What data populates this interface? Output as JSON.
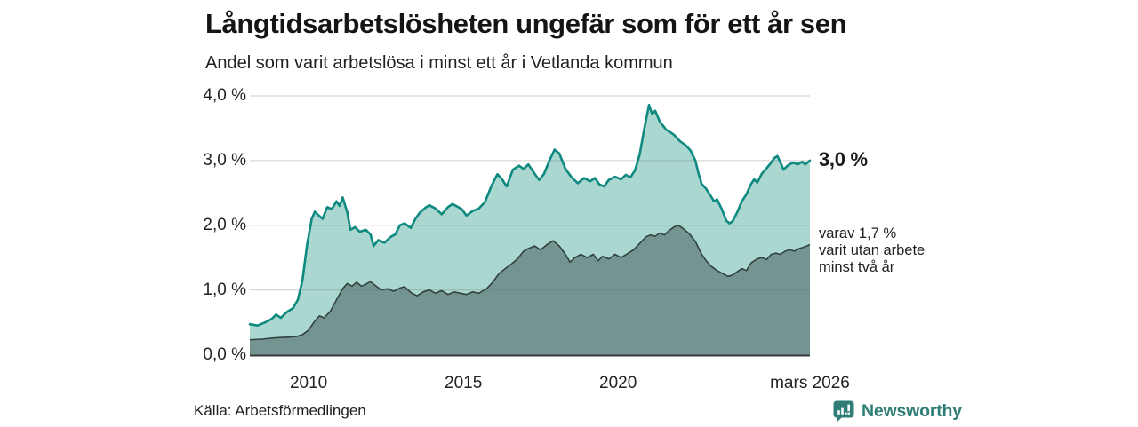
{
  "header": {
    "title": "Långtidsarbetslösheten ungefär som för ett år sen",
    "subtitle": "Andel som varit arbetslösa i minst ett år i Vetlanda kommun"
  },
  "chart_data": {
    "type": "area",
    "title": "Långtidsarbetslösheten ungefär som för ett år sen",
    "subtitle": "Andel som varit arbetslösa i minst ett år i Vetlanda kommun",
    "unit": "%",
    "x_domain": [
      2008.1,
      2026.2
    ],
    "ylim": [
      0,
      4
    ],
    "grid": true,
    "y_ticks": [
      {
        "value": 0,
        "label": "0,0 %"
      },
      {
        "value": 1,
        "label": "1,0 %"
      },
      {
        "value": 2,
        "label": "2,0 %"
      },
      {
        "value": 3,
        "label": "3,0 %"
      },
      {
        "value": 4,
        "label": "4,0 %"
      }
    ],
    "x_ticks": [
      {
        "value": 2010,
        "label": "2010"
      },
      {
        "value": 2015,
        "label": "2015"
      },
      {
        "value": 2020,
        "label": "2020"
      },
      {
        "value": 2026.2,
        "label": "mars 2026"
      }
    ],
    "colors": {
      "series1_line": "#0f8a80",
      "series1_fill": "#aad7d0",
      "series2_line": "#32423f",
      "series2_fill": "#739490",
      "gridline": "#d7d7d7",
      "axis_line": "#3a3a3a"
    },
    "series": [
      {
        "name": "Andel arbetslösa minst ett år",
        "end_value_label": "3,0 %",
        "points": [
          [
            2008.1,
            0.47
          ],
          [
            2008.35,
            0.45
          ],
          [
            2008.6,
            0.5
          ],
          [
            2008.8,
            0.55
          ],
          [
            2008.95,
            0.62
          ],
          [
            2009.1,
            0.57
          ],
          [
            2009.3,
            0.66
          ],
          [
            2009.5,
            0.72
          ],
          [
            2009.65,
            0.85
          ],
          [
            2009.8,
            1.15
          ],
          [
            2009.95,
            1.7
          ],
          [
            2010.1,
            2.1
          ],
          [
            2010.2,
            2.21
          ],
          [
            2010.35,
            2.14
          ],
          [
            2010.45,
            2.1
          ],
          [
            2010.6,
            2.28
          ],
          [
            2010.75,
            2.25
          ],
          [
            2010.9,
            2.37
          ],
          [
            2011.0,
            2.3
          ],
          [
            2011.1,
            2.43
          ],
          [
            2011.25,
            2.2
          ],
          [
            2011.35,
            1.93
          ],
          [
            2011.5,
            1.97
          ],
          [
            2011.65,
            1.9
          ],
          [
            2011.85,
            1.93
          ],
          [
            2012.0,
            1.86
          ],
          [
            2012.1,
            1.68
          ],
          [
            2012.25,
            1.77
          ],
          [
            2012.45,
            1.73
          ],
          [
            2012.65,
            1.82
          ],
          [
            2012.8,
            1.86
          ],
          [
            2012.95,
            2.0
          ],
          [
            2013.1,
            2.03
          ],
          [
            2013.3,
            1.96
          ],
          [
            2013.45,
            2.1
          ],
          [
            2013.6,
            2.2
          ],
          [
            2013.8,
            2.28
          ],
          [
            2013.9,
            2.31
          ],
          [
            2014.1,
            2.26
          ],
          [
            2014.3,
            2.17
          ],
          [
            2014.5,
            2.28
          ],
          [
            2014.65,
            2.33
          ],
          [
            2014.8,
            2.29
          ],
          [
            2014.95,
            2.25
          ],
          [
            2015.1,
            2.15
          ],
          [
            2015.3,
            2.22
          ],
          [
            2015.5,
            2.26
          ],
          [
            2015.7,
            2.36
          ],
          [
            2015.9,
            2.6
          ],
          [
            2016.1,
            2.79
          ],
          [
            2016.25,
            2.71
          ],
          [
            2016.4,
            2.6
          ],
          [
            2016.6,
            2.86
          ],
          [
            2016.8,
            2.92
          ],
          [
            2016.95,
            2.87
          ],
          [
            2017.1,
            2.94
          ],
          [
            2017.3,
            2.8
          ],
          [
            2017.45,
            2.7
          ],
          [
            2017.6,
            2.79
          ],
          [
            2017.8,
            3.02
          ],
          [
            2017.95,
            3.17
          ],
          [
            2018.1,
            3.11
          ],
          [
            2018.3,
            2.87
          ],
          [
            2018.5,
            2.74
          ],
          [
            2018.7,
            2.65
          ],
          [
            2018.9,
            2.73
          ],
          [
            2019.1,
            2.68
          ],
          [
            2019.25,
            2.73
          ],
          [
            2019.4,
            2.63
          ],
          [
            2019.55,
            2.6
          ],
          [
            2019.7,
            2.7
          ],
          [
            2019.9,
            2.75
          ],
          [
            2020.1,
            2.71
          ],
          [
            2020.25,
            2.78
          ],
          [
            2020.4,
            2.74
          ],
          [
            2020.55,
            2.85
          ],
          [
            2020.7,
            3.1
          ],
          [
            2020.85,
            3.5
          ],
          [
            2021.0,
            3.86
          ],
          [
            2021.1,
            3.72
          ],
          [
            2021.2,
            3.77
          ],
          [
            2021.35,
            3.6
          ],
          [
            2021.55,
            3.48
          ],
          [
            2021.8,
            3.4
          ],
          [
            2022.0,
            3.3
          ],
          [
            2022.2,
            3.23
          ],
          [
            2022.35,
            3.15
          ],
          [
            2022.5,
            3.0
          ],
          [
            2022.6,
            2.8
          ],
          [
            2022.7,
            2.64
          ],
          [
            2022.85,
            2.56
          ],
          [
            2023.0,
            2.45
          ],
          [
            2023.1,
            2.37
          ],
          [
            2023.2,
            2.4
          ],
          [
            2023.35,
            2.25
          ],
          [
            2023.5,
            2.07
          ],
          [
            2023.6,
            2.03
          ],
          [
            2023.7,
            2.06
          ],
          [
            2023.85,
            2.2
          ],
          [
            2024.0,
            2.37
          ],
          [
            2024.15,
            2.48
          ],
          [
            2024.3,
            2.64
          ],
          [
            2024.4,
            2.71
          ],
          [
            2024.5,
            2.66
          ],
          [
            2024.65,
            2.8
          ],
          [
            2024.8,
            2.88
          ],
          [
            2024.95,
            2.97
          ],
          [
            2025.05,
            3.04
          ],
          [
            2025.15,
            3.07
          ],
          [
            2025.25,
            2.97
          ],
          [
            2025.35,
            2.86
          ],
          [
            2025.5,
            2.93
          ],
          [
            2025.65,
            2.97
          ],
          [
            2025.8,
            2.94
          ],
          [
            2025.95,
            2.98
          ],
          [
            2026.05,
            2.94
          ],
          [
            2026.2,
            3.0
          ]
        ]
      },
      {
        "name": "varav utan arbete minst två år",
        "end_value_label": "1,7 %",
        "points": [
          [
            2008.1,
            0.23
          ],
          [
            2008.5,
            0.24
          ],
          [
            2008.9,
            0.26
          ],
          [
            2009.3,
            0.27
          ],
          [
            2009.6,
            0.28
          ],
          [
            2009.8,
            0.31
          ],
          [
            2010.0,
            0.38
          ],
          [
            2010.2,
            0.52
          ],
          [
            2010.35,
            0.6
          ],
          [
            2010.5,
            0.57
          ],
          [
            2010.7,
            0.67
          ],
          [
            2010.9,
            0.85
          ],
          [
            2011.1,
            1.02
          ],
          [
            2011.25,
            1.1
          ],
          [
            2011.4,
            1.06
          ],
          [
            2011.55,
            1.12
          ],
          [
            2011.7,
            1.06
          ],
          [
            2011.85,
            1.09
          ],
          [
            2012.0,
            1.13
          ],
          [
            2012.15,
            1.07
          ],
          [
            2012.35,
            1.0
          ],
          [
            2012.55,
            1.02
          ],
          [
            2012.75,
            0.98
          ],
          [
            2012.95,
            1.03
          ],
          [
            2013.1,
            1.05
          ],
          [
            2013.3,
            0.96
          ],
          [
            2013.5,
            0.91
          ],
          [
            2013.7,
            0.97
          ],
          [
            2013.9,
            1.0
          ],
          [
            2014.1,
            0.95
          ],
          [
            2014.3,
            0.99
          ],
          [
            2014.5,
            0.93
          ],
          [
            2014.7,
            0.97
          ],
          [
            2014.9,
            0.95
          ],
          [
            2015.1,
            0.93
          ],
          [
            2015.3,
            0.97
          ],
          [
            2015.5,
            0.95
          ],
          [
            2015.75,
            1.02
          ],
          [
            2015.95,
            1.12
          ],
          [
            2016.15,
            1.25
          ],
          [
            2016.35,
            1.33
          ],
          [
            2016.55,
            1.4
          ],
          [
            2016.75,
            1.48
          ],
          [
            2016.95,
            1.6
          ],
          [
            2017.1,
            1.64
          ],
          [
            2017.3,
            1.68
          ],
          [
            2017.5,
            1.62
          ],
          [
            2017.7,
            1.7
          ],
          [
            2017.9,
            1.76
          ],
          [
            2018.1,
            1.68
          ],
          [
            2018.3,
            1.55
          ],
          [
            2018.45,
            1.43
          ],
          [
            2018.6,
            1.5
          ],
          [
            2018.8,
            1.55
          ],
          [
            2019.0,
            1.5
          ],
          [
            2019.2,
            1.55
          ],
          [
            2019.35,
            1.45
          ],
          [
            2019.5,
            1.52
          ],
          [
            2019.7,
            1.48
          ],
          [
            2019.9,
            1.55
          ],
          [
            2020.1,
            1.5
          ],
          [
            2020.3,
            1.56
          ],
          [
            2020.5,
            1.62
          ],
          [
            2020.7,
            1.72
          ],
          [
            2020.9,
            1.82
          ],
          [
            2021.05,
            1.85
          ],
          [
            2021.2,
            1.83
          ],
          [
            2021.35,
            1.88
          ],
          [
            2021.5,
            1.85
          ],
          [
            2021.65,
            1.92
          ],
          [
            2021.8,
            1.97
          ],
          [
            2021.95,
            2.0
          ],
          [
            2022.1,
            1.95
          ],
          [
            2022.3,
            1.87
          ],
          [
            2022.5,
            1.75
          ],
          [
            2022.7,
            1.55
          ],
          [
            2022.85,
            1.45
          ],
          [
            2023.0,
            1.37
          ],
          [
            2023.2,
            1.3
          ],
          [
            2023.4,
            1.25
          ],
          [
            2023.55,
            1.21
          ],
          [
            2023.7,
            1.23
          ],
          [
            2023.85,
            1.28
          ],
          [
            2024.0,
            1.33
          ],
          [
            2024.15,
            1.3
          ],
          [
            2024.3,
            1.42
          ],
          [
            2024.5,
            1.48
          ],
          [
            2024.65,
            1.5
          ],
          [
            2024.8,
            1.47
          ],
          [
            2024.95,
            1.55
          ],
          [
            2025.1,
            1.57
          ],
          [
            2025.25,
            1.55
          ],
          [
            2025.4,
            1.6
          ],
          [
            2025.55,
            1.62
          ],
          [
            2025.7,
            1.6
          ],
          [
            2025.85,
            1.64
          ],
          [
            2026.0,
            1.66
          ],
          [
            2026.2,
            1.7
          ]
        ]
      }
    ],
    "annotations": {
      "end_value_main": "3,0 %",
      "end_note_lines": [
        "varav 1,7 %",
        "varit utan arbete",
        "minst två år"
      ]
    },
    "legend_position": "right-annotations"
  },
  "footer": {
    "source": "Källa: Arbetsförmedlingen",
    "brand": "Newsworthy"
  }
}
